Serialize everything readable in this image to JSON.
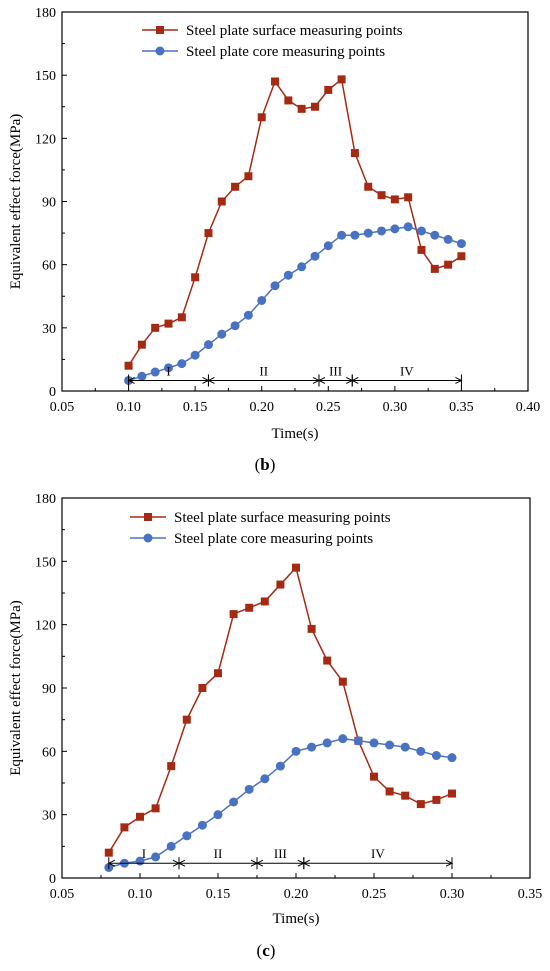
{
  "chart_data": [
    {
      "type": "line",
      "panel_label_open": "(",
      "panel_label": "b",
      "panel_label_close": ")",
      "xlabel": "Time(s)",
      "ylabel": "Equivalent effect force(MPa)",
      "xlim": [
        0.05,
        0.4
      ],
      "ylim": [
        0,
        180
      ],
      "xticks": [
        "0.05",
        "0.10",
        "0.15",
        "0.20",
        "0.25",
        "0.30",
        "0.35",
        "0.40"
      ],
      "yticks": [
        "0",
        "30",
        "60",
        "90",
        "120",
        "150",
        "180"
      ],
      "grid": false,
      "legend_position": "top-center",
      "series": [
        {
          "name": "Steel plate surface measuring points",
          "color": "#A52A14",
          "marker": "square",
          "x": [
            0.1,
            0.11,
            0.12,
            0.13,
            0.14,
            0.15,
            0.16,
            0.17,
            0.18,
            0.19,
            0.2,
            0.21,
            0.22,
            0.23,
            0.24,
            0.25,
            0.26,
            0.27,
            0.28,
            0.29,
            0.3,
            0.31,
            0.32,
            0.33,
            0.34,
            0.35
          ],
          "y": [
            12,
            22,
            30,
            32,
            35,
            54,
            75,
            90,
            97,
            102,
            130,
            147,
            138,
            134,
            135,
            143,
            148,
            113,
            97,
            93,
            91,
            92,
            67,
            58,
            60,
            64
          ]
        },
        {
          "name": "Steel plate core measuring points",
          "color": "#4A72C2",
          "marker": "circle",
          "x": [
            0.1,
            0.11,
            0.12,
            0.13,
            0.14,
            0.15,
            0.16,
            0.17,
            0.18,
            0.19,
            0.2,
            0.21,
            0.22,
            0.23,
            0.24,
            0.25,
            0.26,
            0.27,
            0.28,
            0.29,
            0.3,
            0.31,
            0.32,
            0.33,
            0.34,
            0.35
          ],
          "y": [
            5,
            7,
            9,
            11,
            13,
            17,
            22,
            27,
            31,
            36,
            43,
            50,
            55,
            59,
            64,
            69,
            74,
            74,
            75,
            76,
            77,
            78,
            76,
            74,
            72,
            70
          ]
        }
      ],
      "phases": [
        {
          "label": "I",
          "start": 0.1,
          "end": 0.16
        },
        {
          "label": "II",
          "start": 0.16,
          "end": 0.243
        },
        {
          "label": "III",
          "start": 0.243,
          "end": 0.268
        },
        {
          "label": "IV",
          "start": 0.268,
          "end": 0.35
        }
      ],
      "phase_y": 5
    },
    {
      "type": "line",
      "panel_label_open": "(",
      "panel_label": "c",
      "panel_label_close": ")",
      "xlabel": "Time(s)",
      "ylabel": "Equivalent effect force(MPa)",
      "xlim": [
        0.05,
        0.35
      ],
      "ylim": [
        0,
        180
      ],
      "xticks": [
        "0.05",
        "0.10",
        "0.15",
        "0.20",
        "0.25",
        "0.30",
        "0.35"
      ],
      "yticks": [
        "0",
        "30",
        "60",
        "90",
        "120",
        "150",
        "180"
      ],
      "grid": false,
      "legend_position": "top-center",
      "series": [
        {
          "name": "Steel plate surface measuring points",
          "color": "#A52A14",
          "marker": "square",
          "x": [
            0.08,
            0.09,
            0.1,
            0.11,
            0.12,
            0.13,
            0.14,
            0.15,
            0.16,
            0.17,
            0.18,
            0.19,
            0.2,
            0.21,
            0.22,
            0.23,
            0.24,
            0.25,
            0.26,
            0.27,
            0.28,
            0.29,
            0.3
          ],
          "y": [
            12,
            24,
            29,
            33,
            53,
            75,
            90,
            97,
            125,
            128,
            131,
            139,
            147,
            118,
            103,
            93,
            65,
            48,
            41,
            39,
            35,
            37,
            40
          ]
        },
        {
          "name": "Steel plate core measuring points",
          "color": "#4A72C2",
          "marker": "circle",
          "x": [
            0.08,
            0.09,
            0.1,
            0.11,
            0.12,
            0.13,
            0.14,
            0.15,
            0.16,
            0.17,
            0.18,
            0.19,
            0.2,
            0.21,
            0.22,
            0.23,
            0.24,
            0.25,
            0.26,
            0.27,
            0.28,
            0.29,
            0.3
          ],
          "y": [
            5,
            7,
            8,
            10,
            15,
            20,
            25,
            30,
            36,
            42,
            47,
            53,
            60,
            62,
            64,
            66,
            65,
            64,
            63,
            62,
            60,
            58,
            57
          ]
        }
      ],
      "phases": [
        {
          "label": "I",
          "start": 0.08,
          "end": 0.125
        },
        {
          "label": "II",
          "start": 0.125,
          "end": 0.175
        },
        {
          "label": "III",
          "start": 0.175,
          "end": 0.205
        },
        {
          "label": "IV",
          "start": 0.205,
          "end": 0.3
        }
      ],
      "phase_y": 7
    }
  ]
}
